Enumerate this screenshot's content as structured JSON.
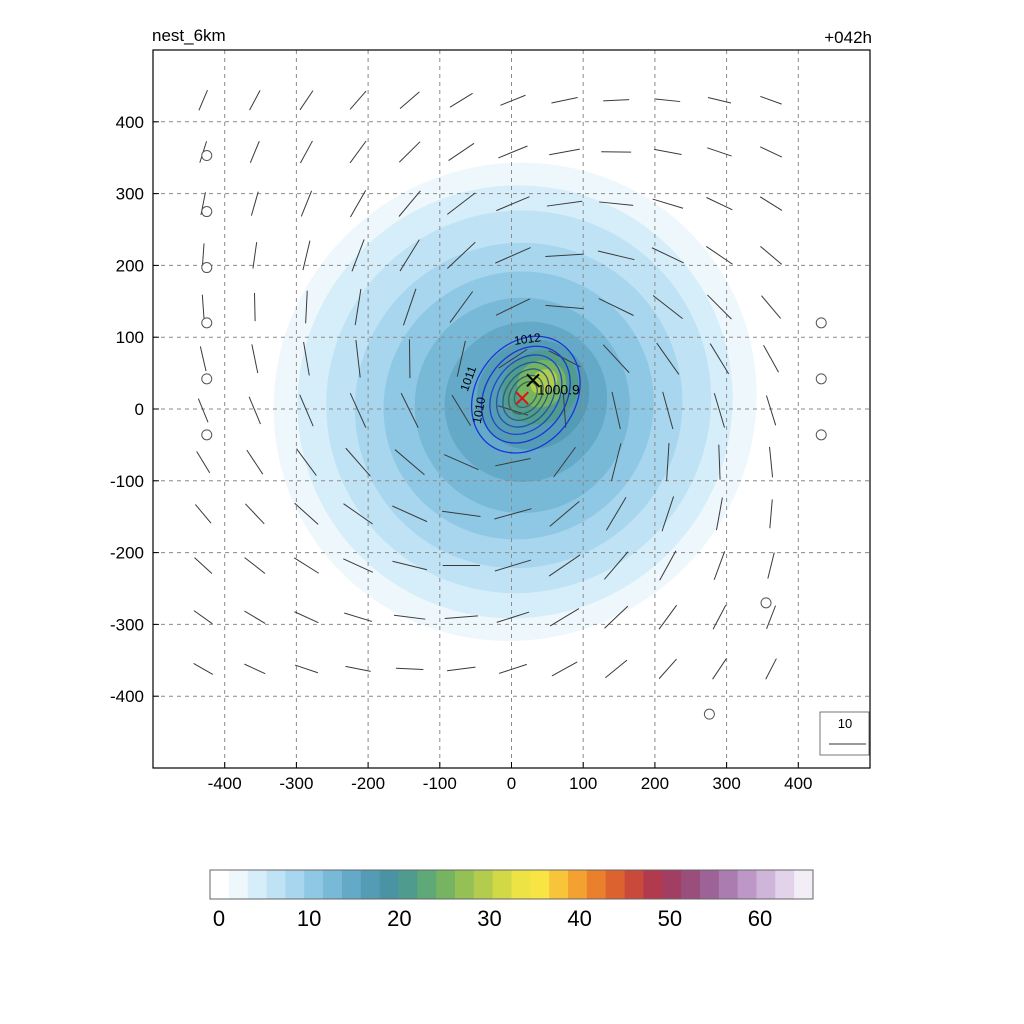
{
  "chart_data": {
    "type": "heatmap",
    "title_left": "nest_6km",
    "title_right": "+042h",
    "xlim": [
      -500,
      500
    ],
    "ylim": [
      -500,
      500
    ],
    "x_ticks": [
      -400,
      -300,
      -200,
      -100,
      0,
      100,
      200,
      300,
      400
    ],
    "y_ticks": [
      400,
      300,
      200,
      100,
      0,
      -100,
      -200,
      -300,
      -400
    ],
    "grid": true,
    "colorbar": {
      "min": 0,
      "max": 66,
      "ticks": [
        0,
        10,
        20,
        30,
        40,
        50,
        60
      ],
      "colors": [
        "#ffffff",
        "#eef7fc",
        "#d6eefa",
        "#bfe3f5",
        "#a7d6ee",
        "#8ec8e5",
        "#78b9d8",
        "#64a9c8",
        "#549bb6",
        "#4a93a4",
        "#4f9b8d",
        "#5fa877",
        "#76b462",
        "#94c055",
        "#b3cc4d",
        "#d2d947",
        "#eee344",
        "#f8e443",
        "#f7c43a",
        "#f3a131",
        "#ea7f2c",
        "#dc6230",
        "#c94a3a",
        "#b13a4e",
        "#a33e63",
        "#9a4e7c",
        "#9d6396",
        "#aa7caf",
        "#bd97c6",
        "#d0b5da",
        "#e3d3ea",
        "#f3edf6"
      ]
    },
    "center_pressure_label": "1000.9",
    "pressure_contours": [
      {
        "label": "1012",
        "value": 1012
      },
      {
        "label": "1011",
        "value": 1011
      },
      {
        "label": "1010",
        "value": 1010
      }
    ],
    "field_levels": [
      {
        "value": 1,
        "rx": 370,
        "ry": 360,
        "cx": 0,
        "cy": 10
      },
      {
        "value": 3,
        "rx": 340,
        "ry": 330,
        "cx": 5,
        "cy": 10
      },
      {
        "value": 5,
        "rx": 305,
        "ry": 300,
        "cx": 5,
        "cy": 10
      },
      {
        "value": 7,
        "rx": 270,
        "ry": 265,
        "cx": 10,
        "cy": 10
      },
      {
        "value": 9,
        "rx": 230,
        "ry": 225,
        "cx": 10,
        "cy": 5
      },
      {
        "value": 11,
        "rx": 190,
        "ry": 185,
        "cx": 10,
        "cy": 5
      },
      {
        "value": 13,
        "rx": 150,
        "ry": 150,
        "cx": 15,
        "cy": 5
      },
      {
        "value": 15,
        "rx": 115,
        "ry": 110,
        "cx": 20,
        "cy": 10
      },
      {
        "value": 18,
        "rx": 80,
        "ry": 75,
        "cx": 30,
        "cy": 20
      },
      {
        "value": 22,
        "rx": 55,
        "ry": 50,
        "cx": 40,
        "cy": 30
      },
      {
        "value": 26,
        "rx": 35,
        "ry": 32,
        "cx": 42,
        "cy": 35
      },
      {
        "value": 30,
        "rx": 20,
        "ry": 16,
        "cx": 45,
        "cy": 38
      }
    ],
    "calm_points": [
      {
        "x": -425,
        "y": 353
      },
      {
        "x": -425,
        "y": 275
      },
      {
        "x": -425,
        "y": 197
      },
      {
        "x": -425,
        "y": 120
      },
      {
        "x": -425,
        "y": 42
      },
      {
        "x": -425,
        "y": -36
      },
      {
        "x": 432,
        "y": 120
      },
      {
        "x": 432,
        "y": 42
      },
      {
        "x": 432,
        "y": -36
      },
      {
        "x": 355,
        "y": -270
      },
      {
        "x": 276,
        "y": -425
      }
    ],
    "vector_reference": {
      "label": "10",
      "magnitude": 10
    },
    "storm_center_black": {
      "x": 30,
      "y": 40
    },
    "storm_center_red": {
      "x": 15,
      "y": 15
    }
  }
}
